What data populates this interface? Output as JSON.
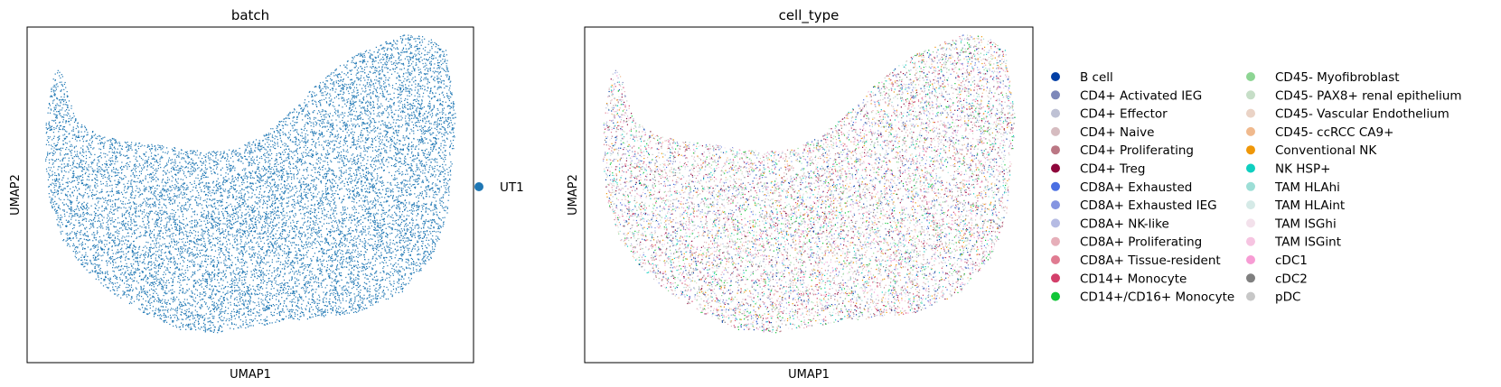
{
  "chart_data": [
    {
      "type": "scatter",
      "title": "batch",
      "xlabel": "UMAP1",
      "ylabel": "UMAP2",
      "grid": false,
      "legend": "right",
      "series": [
        {
          "name": "UT1",
          "color": "#1f77b4"
        }
      ],
      "x": [],
      "y": []
    },
    {
      "type": "scatter",
      "title": "cell_type",
      "xlabel": "UMAP1",
      "ylabel": "UMAP2",
      "grid": false,
      "legend": "right",
      "series": [
        {
          "name": "B cell",
          "color": "#023fa5"
        },
        {
          "name": "CD4+ Activated IEG",
          "color": "#7d87b9"
        },
        {
          "name": "CD4+ Effector",
          "color": "#bec1d4"
        },
        {
          "name": "CD4+ Naive",
          "color": "#d6bcc0"
        },
        {
          "name": "CD4+ Proliferating",
          "color": "#bb7784"
        },
        {
          "name": "CD4+ Treg",
          "color": "#8e063b"
        },
        {
          "name": "CD8A+ Exhausted",
          "color": "#4a6fe3"
        },
        {
          "name": "CD8A+ Exhausted IEG",
          "color": "#8595e1"
        },
        {
          "name": "CD8A+ NK-like",
          "color": "#b5bbe3"
        },
        {
          "name": "CD8A+ Proliferating",
          "color": "#e6afb9"
        },
        {
          "name": "CD8A+ Tissue-resident",
          "color": "#e07b91"
        },
        {
          "name": "CD14+ Monocyte",
          "color": "#d33f6a"
        },
        {
          "name": "CD14+/CD16+ Monocyte",
          "color": "#11c638"
        },
        {
          "name": "CD45- Myofibroblast",
          "color": "#8dd593"
        },
        {
          "name": "CD45- PAX8+ renal epithelium",
          "color": "#c6dec7"
        },
        {
          "name": "CD45- Vascular Endothelium",
          "color": "#ead3c6"
        },
        {
          "name": "CD45- ccRCC CA9+",
          "color": "#f0b98d"
        },
        {
          "name": "Conventional NK",
          "color": "#ef9708"
        },
        {
          "name": "NK HSP+",
          "color": "#0fcfc0"
        },
        {
          "name": "TAM HLAhi",
          "color": "#9cded6"
        },
        {
          "name": "TAM HLAint",
          "color": "#d5eae7"
        },
        {
          "name": "TAM ISGhi",
          "color": "#f3e1eb"
        },
        {
          "name": "TAM ISGint",
          "color": "#f6c4e1"
        },
        {
          "name": "cDC1",
          "color": "#f79cd4"
        },
        {
          "name": "cDC2",
          "color": "#7f7f7f"
        },
        {
          "name": "pDC",
          "color": "#c7c7c7"
        }
      ],
      "x": [],
      "y": []
    }
  ]
}
